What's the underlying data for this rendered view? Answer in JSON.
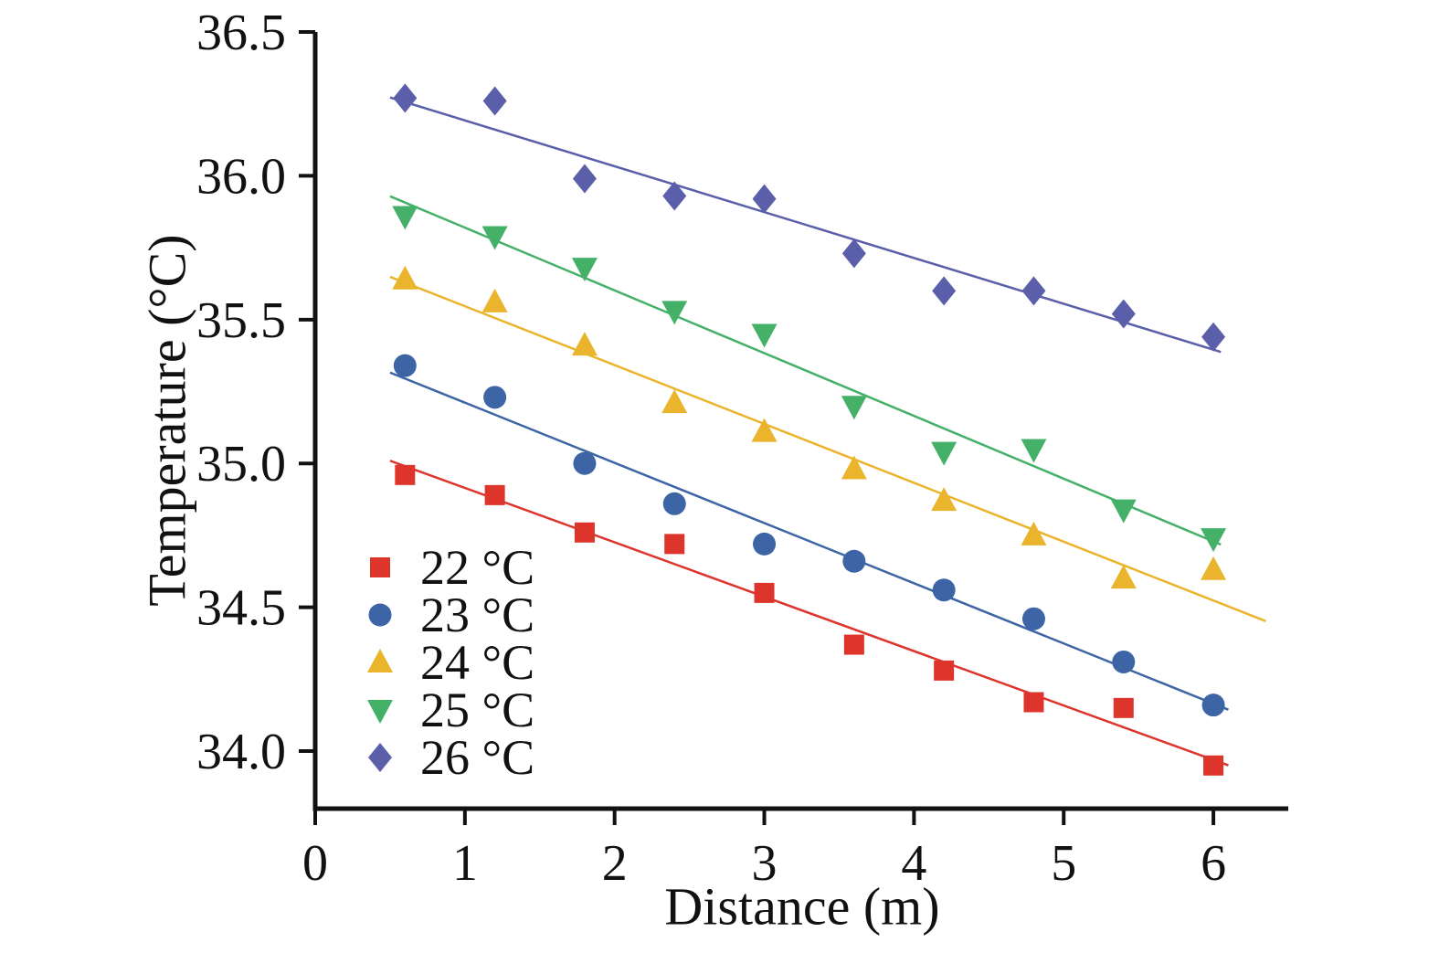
{
  "chart_data": {
    "type": "scatter",
    "title": "",
    "xlabel": "Distance (m)",
    "ylabel": "Temperature (°C)",
    "xlim": [
      0,
      6.5
    ],
    "ylim": [
      33.8,
      36.5
    ],
    "x_ticks": [
      0,
      1,
      2,
      3,
      4,
      5,
      6
    ],
    "x_tick_labels": [
      "0",
      "1",
      "2",
      "3",
      "4",
      "5",
      "6"
    ],
    "y_ticks": [
      34.0,
      34.5,
      35.0,
      35.5,
      36.0,
      36.5
    ],
    "y_tick_labels": [
      "34.0",
      "34.5",
      "35.0",
      "35.5",
      "36.0",
      "36.5"
    ],
    "grid": false,
    "legend_position": "lower-left",
    "axis_color": "#111111",
    "x": [
      0.6,
      1.2,
      1.8,
      2.4,
      3.0,
      3.6,
      4.2,
      4.8,
      5.4,
      6.0
    ],
    "series": [
      {
        "name": "22 °C",
        "marker": "square",
        "color": "#dd342c",
        "values": [
          34.96,
          34.89,
          34.76,
          34.72,
          34.55,
          34.37,
          34.28,
          34.17,
          34.15,
          33.95
        ],
        "fit": "linear",
        "line_span": [
          0.5,
          6.1
        ]
      },
      {
        "name": "23 °C",
        "marker": "circle",
        "color": "#3d65a5",
        "values": [
          35.34,
          35.23,
          35.0,
          34.86,
          34.72,
          34.66,
          34.56,
          34.46,
          34.31,
          34.16
        ],
        "fit": "linear",
        "line_span": [
          0.5,
          6.1
        ]
      },
      {
        "name": "24 °C",
        "marker": "triangle-up",
        "color": "#eab42c",
        "values": [
          35.64,
          35.56,
          35.41,
          35.21,
          35.11,
          34.98,
          34.87,
          34.75,
          34.6,
          34.63
        ],
        "fit": "linear",
        "line_span": [
          0.5,
          6.35
        ]
      },
      {
        "name": "25 °C",
        "marker": "triangle-down",
        "color": "#45b168",
        "values": [
          35.86,
          35.79,
          35.68,
          35.53,
          35.45,
          35.2,
          35.04,
          35.05,
          34.84,
          34.74
        ],
        "fit": "linear",
        "line_span": [
          0.5,
          6.05
        ]
      },
      {
        "name": "26 °C",
        "marker": "diamond",
        "color": "#5b5ea9",
        "values": [
          36.27,
          36.26,
          35.99,
          35.93,
          35.92,
          35.73,
          35.6,
          35.6,
          35.52,
          35.44
        ],
        "fit": "linear",
        "line_span": [
          0.5,
          6.05
        ]
      }
    ]
  }
}
